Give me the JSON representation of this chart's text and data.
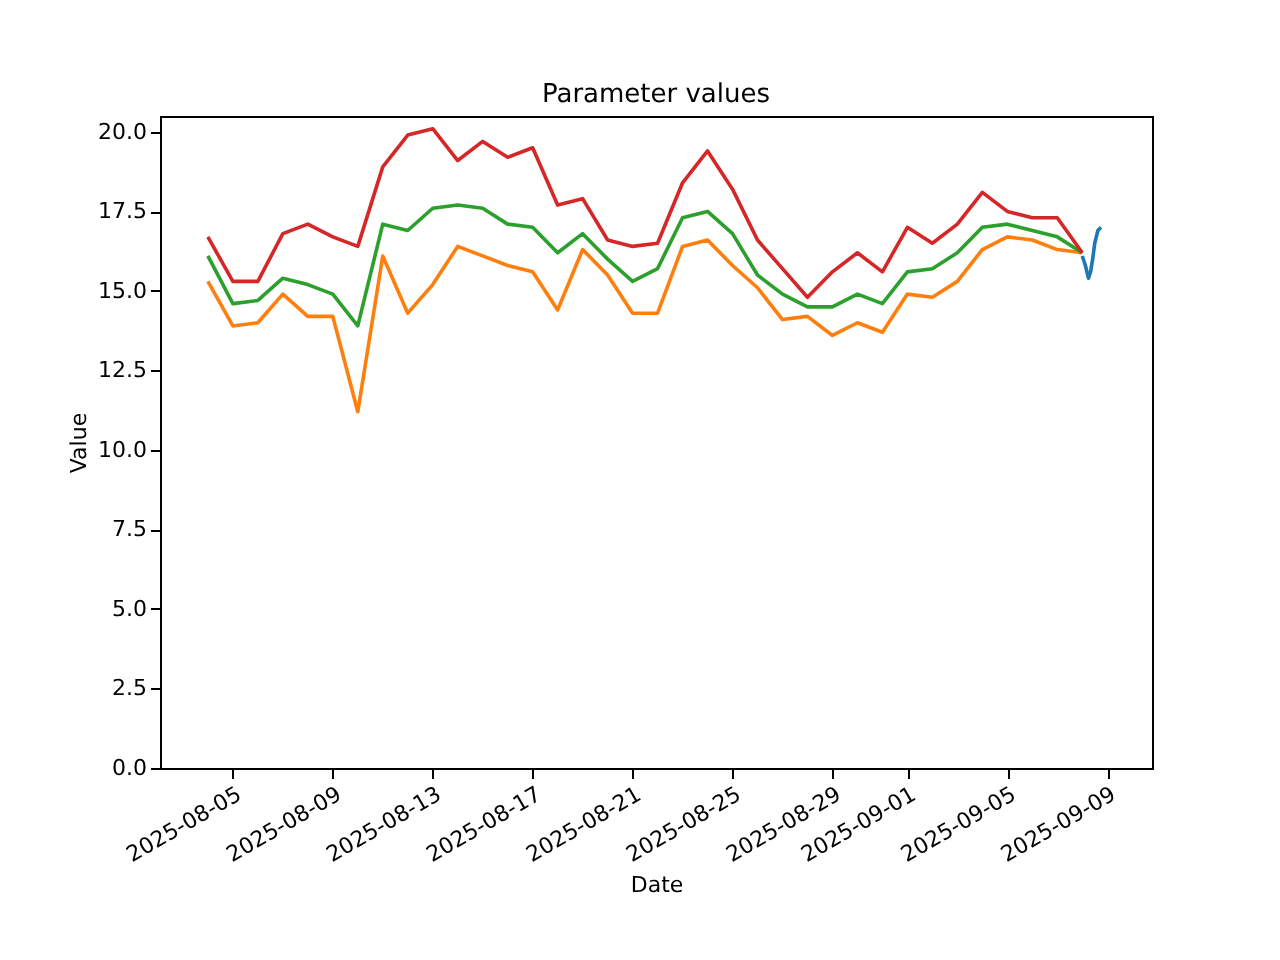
{
  "chart_data": {
    "type": "line",
    "title": "Parameter values",
    "xlabel": "Date",
    "ylabel": "Value",
    "x": [
      "2025-08-04",
      "2025-08-05",
      "2025-08-06",
      "2025-08-07",
      "2025-08-08",
      "2025-08-09",
      "2025-08-10",
      "2025-08-11",
      "2025-08-12",
      "2025-08-13",
      "2025-08-14",
      "2025-08-15",
      "2025-08-16",
      "2025-08-17",
      "2025-08-18",
      "2025-08-19",
      "2025-08-20",
      "2025-08-21",
      "2025-08-22",
      "2025-08-23",
      "2025-08-24",
      "2025-08-25",
      "2025-08-26",
      "2025-08-27",
      "2025-08-28",
      "2025-08-29",
      "2025-08-30",
      "2025-08-31",
      "2025-09-01",
      "2025-09-02",
      "2025-09-03",
      "2025-09-04",
      "2025-09-05",
      "2025-09-06",
      "2025-09-07",
      "2025-09-08"
    ],
    "series": [
      {
        "color": "#1f77b4",
        "x": [
          "2025-09-08T00:00",
          "2025-09-08T03:00",
          "2025-09-08T06:00",
          "2025-09-08T08:00",
          "2025-09-08T10:00",
          "2025-09-08T12:00",
          "2025-09-08T15:00",
          "2025-09-08T18:00"
        ],
        "values": [
          16.1,
          15.8,
          15.4,
          15.6,
          16.0,
          16.5,
          16.9,
          17.0
        ]
      },
      {
        "color": "#ff7f0e",
        "values": [
          15.3,
          13.9,
          14.0,
          14.9,
          14.2,
          14.2,
          11.2,
          16.1,
          14.3,
          15.2,
          16.4,
          16.1,
          15.8,
          15.6,
          14.4,
          16.3,
          15.5,
          14.3,
          14.3,
          16.4,
          16.6,
          15.8,
          15.1,
          14.1,
          14.2,
          13.6,
          14.0,
          13.7,
          14.9,
          14.8,
          15.3,
          16.3,
          16.7,
          16.6,
          16.3,
          16.2
        ]
      },
      {
        "color": "#2ca02c",
        "values": [
          16.1,
          14.6,
          14.7,
          15.4,
          15.2,
          14.9,
          13.9,
          17.1,
          16.9,
          17.6,
          17.7,
          17.6,
          17.1,
          17.0,
          16.2,
          16.8,
          16.0,
          15.3,
          15.7,
          17.3,
          17.5,
          16.8,
          15.5,
          14.9,
          14.5,
          14.5,
          14.9,
          14.6,
          15.6,
          15.7,
          16.2,
          17.0,
          17.1,
          16.9,
          16.7,
          16.2
        ]
      },
      {
        "color": "#d62728",
        "values": [
          16.7,
          15.3,
          15.3,
          16.8,
          17.1,
          16.7,
          16.4,
          18.9,
          19.9,
          20.1,
          19.1,
          19.7,
          19.2,
          19.5,
          17.7,
          17.9,
          16.6,
          16.4,
          16.5,
          18.4,
          19.4,
          18.2,
          16.6,
          15.7,
          14.8,
          15.6,
          16.2,
          15.6,
          17.0,
          16.5,
          17.1,
          18.1,
          17.5,
          17.3,
          17.3,
          16.2
        ]
      }
    ],
    "xlim": [
      "2025-08-02T02:00",
      "2025-09-10T19:00"
    ],
    "xticks": [
      "2025-08-05",
      "2025-08-09",
      "2025-08-13",
      "2025-08-17",
      "2025-08-21",
      "2025-08-25",
      "2025-08-29",
      "2025-09-01",
      "2025-09-05",
      "2025-09-09"
    ],
    "ylim": [
      0,
      20.5
    ],
    "yticks": [
      {
        "value": 0,
        "label": "0.0"
      },
      {
        "value": 2.5,
        "label": "2.5"
      },
      {
        "value": 5,
        "label": "5.0"
      },
      {
        "value": 7.5,
        "label": "7.5"
      },
      {
        "value": 10,
        "label": "10.0"
      },
      {
        "value": 12.5,
        "label": "12.5"
      },
      {
        "value": 15,
        "label": "15.0"
      },
      {
        "value": 17.5,
        "label": "17.5"
      },
      {
        "value": 20,
        "label": "20.0"
      }
    ],
    "grid": false,
    "legend": false,
    "line_style": "solid"
  }
}
